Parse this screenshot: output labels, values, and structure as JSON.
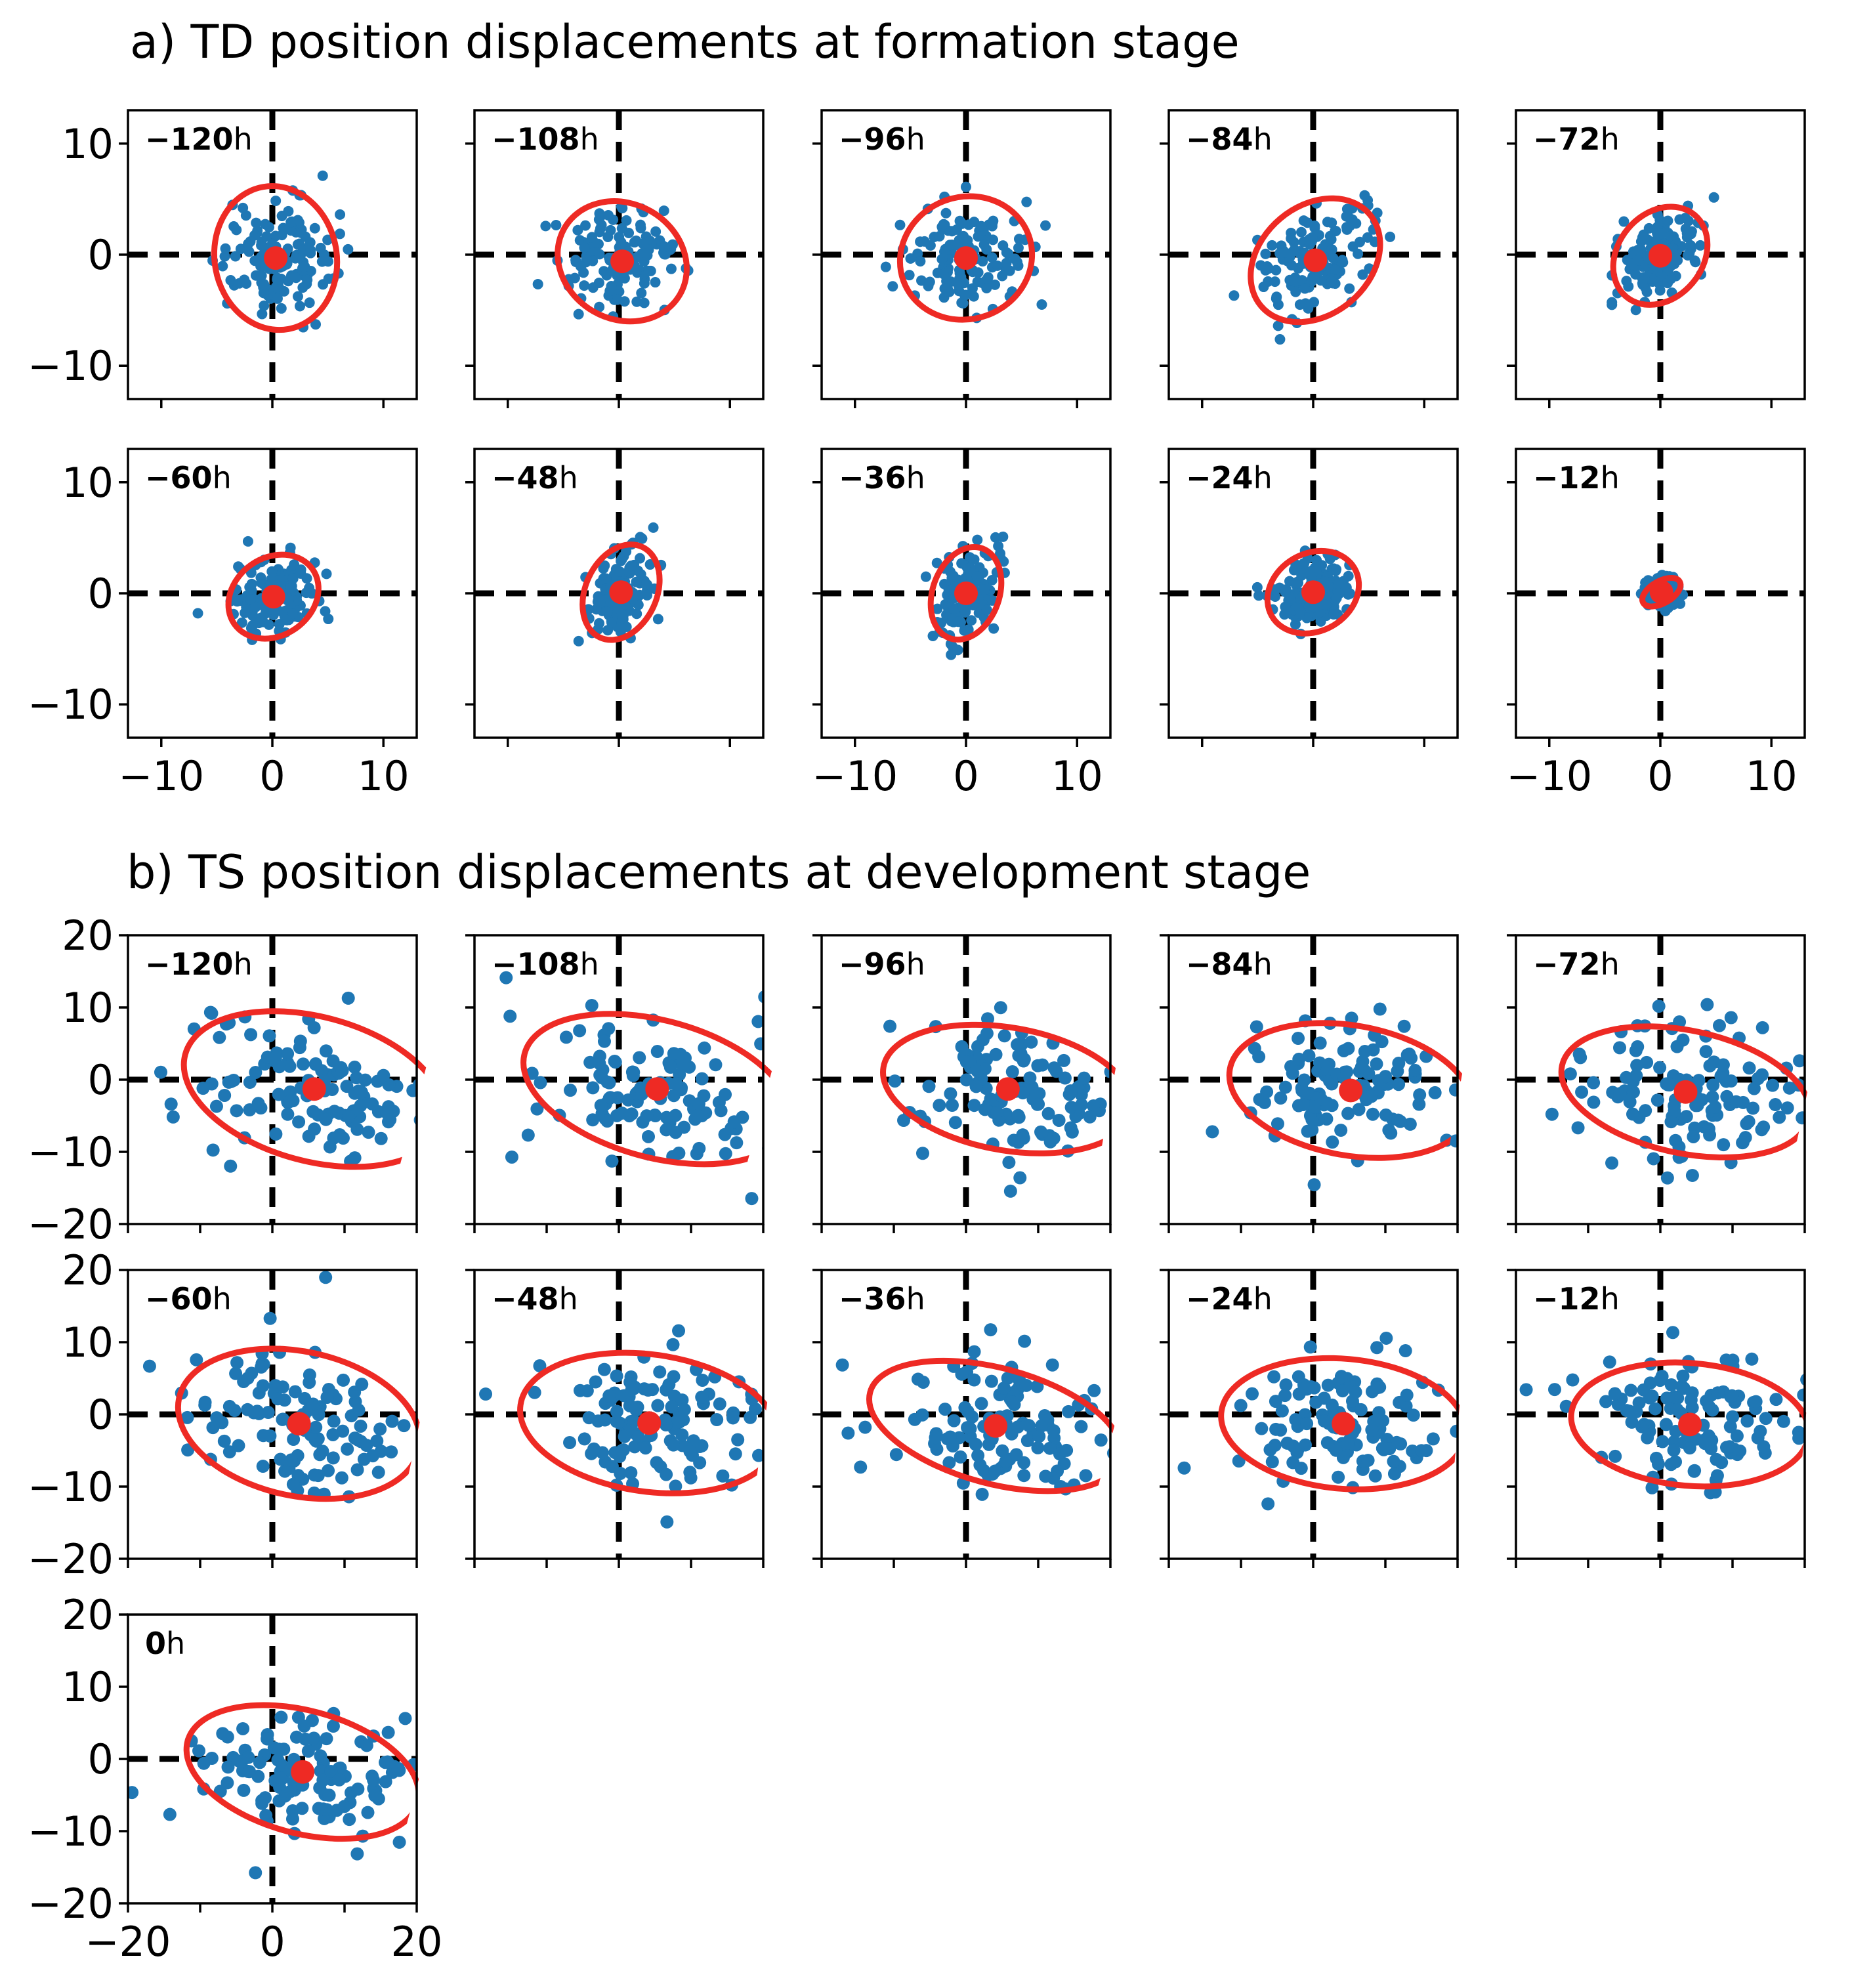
{
  "chart_data": [
    {
      "type": "scatter",
      "section_title": "a) TD position displacements at formation stage",
      "xlim": [
        -13,
        13
      ],
      "ylim": [
        -13,
        13
      ],
      "ticks": [
        -10,
        0,
        10
      ],
      "tick_labels": [
        "−10",
        "0",
        "10"
      ],
      "unit_label": "h",
      "panels": [
        {
          "id": "a-120",
          "label_num": "−120",
          "center": [
            0.3,
            -0.3
          ],
          "ellipse": {
            "rx": 5.5,
            "ry": 6.5,
            "angle": 10
          },
          "spread": [
            2.5,
            2.6
          ],
          "tilt": 0.1,
          "n": 140
        },
        {
          "id": "a-108",
          "label_num": "−108",
          "center": [
            0.3,
            -0.6
          ],
          "ellipse": {
            "rx": 6.0,
            "ry": 5.2,
            "angle": -30
          },
          "spread": [
            2.6,
            2.2
          ],
          "tilt": -0.1,
          "n": 140
        },
        {
          "id": "a-96",
          "label_num": "−96",
          "center": [
            0.0,
            -0.3
          ],
          "ellipse": {
            "rx": 6.0,
            "ry": 5.5,
            "angle": 20
          },
          "spread": [
            2.5,
            2.3
          ],
          "tilt": 0.0,
          "n": 140
        },
        {
          "id": "a-84",
          "label_num": "−84",
          "center": [
            0.2,
            -0.5
          ],
          "ellipse": {
            "rx": 6.4,
            "ry": 4.9,
            "angle": 40
          },
          "spread": [
            2.6,
            2.3
          ],
          "tilt": 0.35,
          "n": 140
        },
        {
          "id": "a-72",
          "label_num": "−72",
          "center": [
            0.0,
            -0.1
          ],
          "ellipse": {
            "rx": 4.8,
            "ry": 3.8,
            "angle": 50
          },
          "spread": [
            2.0,
            1.9
          ],
          "tilt": 0.3,
          "n": 140
        },
        {
          "id": "a-60",
          "label_num": "−60",
          "center": [
            0.1,
            -0.3
          ],
          "ellipse": {
            "rx": 4.3,
            "ry": 3.5,
            "angle": 35
          },
          "spread": [
            1.8,
            1.6
          ],
          "tilt": 0.2,
          "n": 140
        },
        {
          "id": "a-48",
          "label_num": "−48",
          "center": [
            0.2,
            0.1
          ],
          "ellipse": {
            "rx": 4.5,
            "ry": 3.2,
            "angle": 65
          },
          "spread": [
            1.6,
            1.9
          ],
          "tilt": 0.35,
          "n": 140
        },
        {
          "id": "a-36",
          "label_num": "−36",
          "center": [
            0.0,
            0.0
          ],
          "ellipse": {
            "rx": 4.3,
            "ry": 3.0,
            "angle": 70
          },
          "spread": [
            1.4,
            1.9
          ],
          "tilt": 0.35,
          "n": 140
        },
        {
          "id": "a-24",
          "label_num": "−24",
          "center": [
            0.0,
            0.1
          ],
          "ellipse": {
            "rx": 4.3,
            "ry": 3.5,
            "angle": 30
          },
          "spread": [
            1.7,
            1.6
          ],
          "tilt": 0.2,
          "n": 140
        },
        {
          "id": "a-12",
          "label_num": "−12",
          "center": [
            0.1,
            0.1
          ],
          "ellipse": {
            "rx": 1.9,
            "ry": 1.0,
            "angle": 30
          },
          "spread": [
            0.8,
            0.6
          ],
          "tilt": 0.2,
          "n": 110
        }
      ]
    },
    {
      "type": "scatter",
      "section_title": "b) TS position displacements at development stage",
      "xlim": [
        -20,
        20
      ],
      "ylim": [
        -20,
        20
      ],
      "ticks": [
        -20,
        -10,
        0,
        10,
        20
      ],
      "tick_labels": [
        "−20",
        "−10",
        "0",
        "10",
        "20"
      ],
      "unit_label": "h",
      "panels": [
        {
          "id": "b-120",
          "label_num": "−120",
          "center": [
            5.8,
            -1.3
          ],
          "ellipse": {
            "rx": 18.5,
            "ry": 10.0,
            "angle": -15
          },
          "spread": [
            8.0,
            5.0
          ],
          "tilt": -0.2,
          "n": 120
        },
        {
          "id": "b-108",
          "label_num": "−108",
          "center": [
            5.3,
            -1.3
          ],
          "ellipse": {
            "rx": 19.0,
            "ry": 9.5,
            "angle": -15
          },
          "spread": [
            8.0,
            5.0
          ],
          "tilt": -0.2,
          "n": 120
        },
        {
          "id": "b-96",
          "label_num": "−96",
          "center": [
            5.8,
            -1.3
          ],
          "ellipse": {
            "rx": 17.5,
            "ry": 8.5,
            "angle": -10
          },
          "spread": [
            7.5,
            4.5
          ],
          "tilt": -0.15,
          "n": 120
        },
        {
          "id": "b-84",
          "label_num": "−84",
          "center": [
            5.2,
            -1.5
          ],
          "ellipse": {
            "rx": 17.0,
            "ry": 9.0,
            "angle": -10
          },
          "spread": [
            7.5,
            4.5
          ],
          "tilt": -0.15,
          "n": 120
        },
        {
          "id": "b-72",
          "label_num": "−72",
          "center": [
            3.5,
            -1.7
          ],
          "ellipse": {
            "rx": 17.5,
            "ry": 8.5,
            "angle": -12
          },
          "spread": [
            7.5,
            4.5
          ],
          "tilt": -0.15,
          "n": 120
        },
        {
          "id": "b-60",
          "label_num": "−60",
          "center": [
            3.7,
            -1.3
          ],
          "ellipse": {
            "rx": 17.0,
            "ry": 10.0,
            "angle": -12
          },
          "spread": [
            7.5,
            5.0
          ],
          "tilt": -0.15,
          "n": 120
        },
        {
          "id": "b-48",
          "label_num": "−48",
          "center": [
            4.2,
            -1.2
          ],
          "ellipse": {
            "rx": 18.0,
            "ry": 9.5,
            "angle": -8
          },
          "spread": [
            8.0,
            5.0
          ],
          "tilt": -0.1,
          "n": 120
        },
        {
          "id": "b-36",
          "label_num": "−36",
          "center": [
            4.1,
            -1.6
          ],
          "ellipse": {
            "rx": 18.0,
            "ry": 8.0,
            "angle": -15
          },
          "spread": [
            8.0,
            4.5
          ],
          "tilt": -0.2,
          "n": 120
        },
        {
          "id": "b-24",
          "label_num": "−24",
          "center": [
            4.2,
            -1.3
          ],
          "ellipse": {
            "rx": 17.0,
            "ry": 9.0,
            "angle": -5
          },
          "spread": [
            7.5,
            5.0
          ],
          "tilt": -0.05,
          "n": 120
        },
        {
          "id": "b-12",
          "label_num": "−12",
          "center": [
            4.1,
            -1.4
          ],
          "ellipse": {
            "rx": 16.5,
            "ry": 8.5,
            "angle": -5
          },
          "spread": [
            7.5,
            5.0
          ],
          "tilt": -0.05,
          "n": 120
        },
        {
          "id": "b-0",
          "label_num": "0",
          "center": [
            4.2,
            -1.8
          ],
          "ellipse": {
            "rx": 16.5,
            "ry": 8.5,
            "angle": -15
          },
          "spread": [
            7.5,
            4.5
          ],
          "tilt": -0.2,
          "n": 120
        }
      ]
    }
  ],
  "colors": {
    "scatter": "#1f77b4",
    "mean": "#ee2a24",
    "ellipse": "#ee2a24",
    "axes": "#000000"
  }
}
